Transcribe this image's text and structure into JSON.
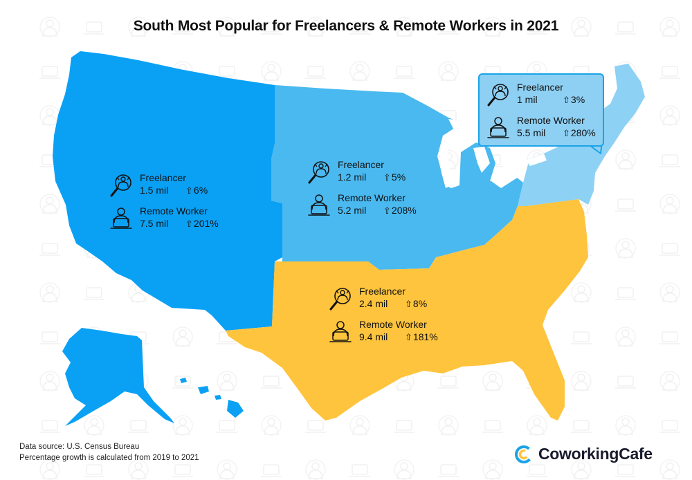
{
  "title": "South Most Popular for Freelancers & Remote Workers in 2021",
  "colors": {
    "west": "#0aa1f5",
    "midwest": "#49b9f0",
    "northeast": "#8dd1f5",
    "south": "#ffc43d",
    "callout_border": "#1ba3e8",
    "brand_accent": "#1ba3e8"
  },
  "regions": {
    "west": {
      "freelancer": {
        "label": "Freelancer",
        "count": "1.5 mil",
        "growth": "6%"
      },
      "remote": {
        "label": "Remote Worker",
        "count": "7.5 mil",
        "growth": "201%"
      }
    },
    "midwest": {
      "freelancer": {
        "label": "Freelancer",
        "count": "1.2 mil",
        "growth": "5%"
      },
      "remote": {
        "label": "Remote Worker",
        "count": "5.2 mil",
        "growth": "208%"
      }
    },
    "northeast": {
      "freelancer": {
        "label": "Freelancer",
        "count": "1 mil",
        "growth": "3%"
      },
      "remote": {
        "label": "Remote Worker",
        "count": "5.5 mil",
        "growth": "280%"
      }
    },
    "south": {
      "freelancer": {
        "label": "Freelancer",
        "count": "2.4 mil",
        "growth": "8%"
      },
      "remote": {
        "label": "Remote Worker",
        "count": "9.4 mil",
        "growth": "181%"
      }
    }
  },
  "icons": {
    "freelancer": "freelancer-magnifier-icon",
    "remote": "remote-worker-laptop-icon",
    "growth": "up-arrow-icon",
    "brand": "coworkingcafe-logo-icon"
  },
  "footer": {
    "source": "Data source: U.S. Census Bureau",
    "note": "Percentage growth is calculated from 2019 to 2021"
  },
  "brand": {
    "name": "CoworkingCafe"
  }
}
